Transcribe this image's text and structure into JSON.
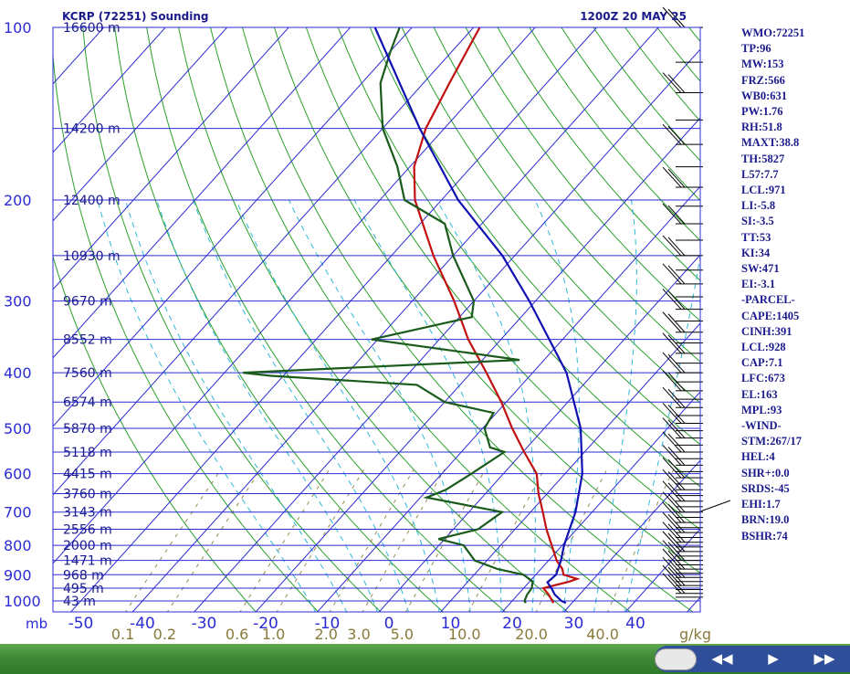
{
  "header": {
    "title": "KCRP (72251) Sounding",
    "date": "1200Z 20 MAY 25"
  },
  "indices": [
    "WMO:72251",
    "TP:96",
    "MW:153",
    "FRZ:566",
    "WB0:631",
    "PW:1.76",
    "RH:51.8",
    "MAXT:38.8",
    "TH:5827",
    "L57:7.7",
    "LCL:971",
    "LI:-5.8",
    "SI:-3.5",
    "TT:53",
    "KI:34",
    "SW:471",
    "EI:-3.1",
    "-PARCEL-",
    "CAPE:1405",
    "CINH:391",
    "LCL:928",
    "CAP:7.1",
    "LFC:673",
    "EL:163",
    "MPL:93",
    "-WIND-",
    "STM:267/17",
    "HEL:4",
    "SHR+:0.0",
    "SRDS:-45",
    "EHI:1.7",
    "BRN:19.0",
    "BSHR:74"
  ],
  "chart_data": {
    "type": "line",
    "subtype": "skew-T log-P",
    "title": "KCRP (72251) Sounding",
    "subtitle": "1200Z 20 MAY 25",
    "x_axis": {
      "label": "",
      "unit_label": "mb",
      "ticks": [
        "-50",
        "-40",
        "-30",
        "-20",
        "-10",
        "0",
        "10",
        "20",
        "30",
        "40"
      ]
    },
    "mixing_ratio_labels": [
      "0.1",
      "0.2",
      "0.6",
      "1.0",
      "2.0",
      "3.0",
      "5.0",
      "10.0",
      "20.0",
      "40.0"
    ],
    "mixing_ratio_unit": "g/kg",
    "pressure_ticks": [
      "100",
      "200",
      "300",
      "400",
      "500",
      "600",
      "700",
      "800",
      "900",
      "1000"
    ],
    "height_labels": [
      {
        "p": 100,
        "label": "16600 m"
      },
      {
        "p": 150,
        "label": "14200 m"
      },
      {
        "p": 200,
        "label": "12400 m"
      },
      {
        "p": 250,
        "label": "10930 m"
      },
      {
        "p": 300,
        "label": "9670 m"
      },
      {
        "p": 350,
        "label": "8552 m"
      },
      {
        "p": 400,
        "label": "7560 m"
      },
      {
        "p": 450,
        "label": "6574 m"
      },
      {
        "p": 500,
        "label": "5870 m"
      },
      {
        "p": 550,
        "label": "5118 m"
      },
      {
        "p": 600,
        "label": "4415 m"
      },
      {
        "p": 650,
        "label": "3760 m"
      },
      {
        "p": 700,
        "label": "3143 m"
      },
      {
        "p": 750,
        "label": "2556 m"
      },
      {
        "p": 800,
        "label": "2000 m"
      },
      {
        "p": 850,
        "label": "1471 m"
      },
      {
        "p": 900,
        "label": "968 m"
      },
      {
        "p": 950,
        "label": "495 m"
      },
      {
        "p": 1000,
        "label": "43 m"
      }
    ],
    "series": [
      {
        "key": "temperature",
        "color": "#c01010",
        "points": [
          [
            1008,
            27
          ],
          [
            1000,
            26.5
          ],
          [
            975,
            25
          ],
          [
            950,
            23.2
          ],
          [
            925,
            26.5
          ],
          [
            915,
            27.3
          ],
          [
            900,
            24.5
          ],
          [
            880,
            23.5
          ],
          [
            850,
            21.3
          ],
          [
            800,
            18.3
          ],
          [
            750,
            15.1
          ],
          [
            700,
            12
          ],
          [
            650,
            8.6
          ],
          [
            600,
            5.4
          ],
          [
            550,
            0.2
          ],
          [
            500,
            -5.2
          ],
          [
            450,
            -10.8
          ],
          [
            400,
            -17.5
          ],
          [
            350,
            -25.3
          ],
          [
            300,
            -33.2
          ],
          [
            250,
            -43.2
          ],
          [
            200,
            -54.3
          ],
          [
            175,
            -59.3
          ],
          [
            150,
            -63
          ],
          [
            125,
            -65.8
          ],
          [
            100,
            -69
          ]
        ]
      },
      {
        "key": "dewpoint",
        "color": "#1a5a1a",
        "points": [
          [
            1008,
            22.5
          ],
          [
            1000,
            22
          ],
          [
            975,
            21.5
          ],
          [
            950,
            21.3
          ],
          [
            925,
            20.5
          ],
          [
            900,
            18
          ],
          [
            880,
            13
          ],
          [
            850,
            8
          ],
          [
            800,
            4
          ],
          [
            780,
            -1
          ],
          [
            750,
            4
          ],
          [
            700,
            5.4
          ],
          [
            660,
            -9
          ],
          [
            640,
            -7
          ],
          [
            600,
            -5.2
          ],
          [
            550,
            -3
          ],
          [
            540,
            -6
          ],
          [
            500,
            -9.7
          ],
          [
            470,
            -10.5
          ],
          [
            450,
            -20
          ],
          [
            420,
            -27
          ],
          [
            405,
            -52
          ],
          [
            400,
            -57
          ],
          [
            380,
            -14
          ],
          [
            350,
            -41
          ],
          [
            320,
            -28
          ],
          [
            300,
            -30
          ],
          [
            250,
            -40
          ],
          [
            220,
            -46
          ],
          [
            200,
            -56
          ],
          [
            175,
            -62
          ],
          [
            150,
            -70
          ],
          [
            125,
            -77
          ],
          [
            110,
            -80
          ],
          [
            100,
            -82
          ]
        ]
      },
      {
        "key": "parcel",
        "color": "#1010b0",
        "points": [
          [
            1008,
            29
          ],
          [
            1000,
            28
          ],
          [
            975,
            26
          ],
          [
            950,
            24.5
          ],
          [
            928,
            23
          ],
          [
            900,
            23.3
          ],
          [
            850,
            22
          ],
          [
            800,
            20.3
          ],
          [
            700,
            17.3
          ],
          [
            600,
            12.8
          ],
          [
            500,
            5.9
          ],
          [
            400,
            -4.5
          ],
          [
            300,
            -21
          ],
          [
            250,
            -32
          ],
          [
            200,
            -47.3
          ],
          [
            150,
            -64
          ],
          [
            100,
            -86
          ]
        ]
      }
    ],
    "wind_barbs": {
      "count": 60,
      "note": "wind barbs plotted along right edge"
    }
  },
  "navigation": {
    "prev_label": "◀◀",
    "play_label": "▶",
    "next_label": "▶▶"
  }
}
